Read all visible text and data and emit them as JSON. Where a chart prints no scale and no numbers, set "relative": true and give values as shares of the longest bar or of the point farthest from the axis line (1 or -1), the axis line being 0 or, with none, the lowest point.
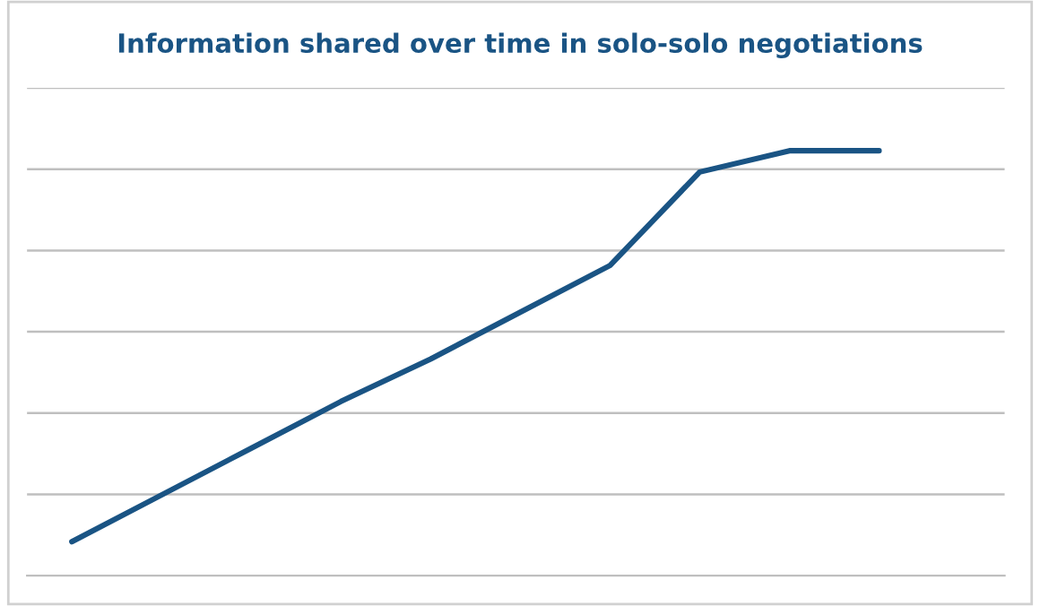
{
  "chart_data": {
    "type": "line",
    "title": "Information shared over time in solo-solo negotiations",
    "relative": true,
    "grid": "y",
    "legend": false,
    "categories": [
      null,
      null,
      null,
      null,
      null,
      null,
      null,
      null,
      null,
      null
    ],
    "series": [
      {
        "color": "#1a5484",
        "values": [
          0.08,
          0.19,
          0.3,
          0.41,
          0.51,
          0.62,
          0.73,
          0.95,
          1,
          1
        ]
      }
    ]
  }
}
